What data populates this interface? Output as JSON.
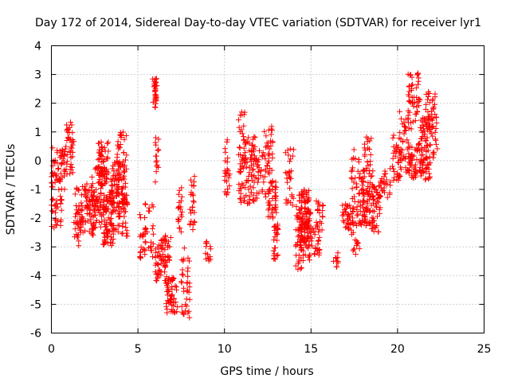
{
  "chart_data": {
    "type": "scatter",
    "title": "Day 172 of 2014, Sidereal Day-to-day VTEC variation (SDTVAR) for receiver lyr1",
    "xlabel": "GPS time / hours",
    "ylabel": "SDTVAR / TECUs",
    "xlim": [
      0,
      25
    ],
    "ylim": [
      -6,
      4
    ],
    "xticks": [
      0,
      5,
      10,
      15,
      20,
      25
    ],
    "yticks": [
      -6,
      -5,
      -4,
      -3,
      -2,
      -1,
      0,
      1,
      2,
      3,
      4
    ],
    "grid": true,
    "marker": "plus",
    "color": "#ff0000",
    "series": [
      {
        "name": "SDTVAR",
        "clusters": [
          {
            "x": [
              0.0,
              0.6
            ],
            "y": [
              -2.4,
              0.6
            ],
            "n": 60
          },
          {
            "x": [
              0.4,
              0.8
            ],
            "y": [
              -1.0,
              0.4
            ],
            "n": 30
          },
          {
            "x": [
              0.8,
              1.3
            ],
            "y": [
              -0.5,
              1.4
            ],
            "n": 40
          },
          {
            "x": [
              1.3,
              1.7
            ],
            "y": [
              -3.0,
              -0.9
            ],
            "n": 35
          },
          {
            "x": [
              1.7,
              2.5
            ],
            "y": [
              -2.6,
              -0.8
            ],
            "n": 70
          },
          {
            "x": [
              2.3,
              3.0
            ],
            "y": [
              -2.4,
              -0.2
            ],
            "n": 70
          },
          {
            "x": [
              2.7,
              3.3
            ],
            "y": [
              -1.0,
              0.7
            ],
            "n": 60
          },
          {
            "x": [
              3.0,
              3.6
            ],
            "y": [
              -3.0,
              -1.0
            ],
            "n": 80
          },
          {
            "x": [
              3.4,
              4.0
            ],
            "y": [
              -2.6,
              0.0
            ],
            "n": 70
          },
          {
            "x": [
              3.8,
              4.4
            ],
            "y": [
              -1.8,
              1.0
            ],
            "n": 70
          },
          {
            "x": [
              4.0,
              4.4
            ],
            "y": [
              -2.7,
              -1.3
            ],
            "n": 25
          },
          {
            "x": [
              5.1,
              5.9
            ],
            "y": [
              -3.4,
              -1.5
            ],
            "n": 45
          },
          {
            "x": [
              5.8,
              6.1
            ],
            "y": [
              1.8,
              2.9
            ],
            "n": 30
          },
          {
            "x": [
              6.0,
              6.2
            ],
            "y": [
              -0.8,
              0.9
            ],
            "n": 15
          },
          {
            "x": [
              6.0,
              6.6
            ],
            "y": [
              -4.2,
              -2.7
            ],
            "n": 55
          },
          {
            "x": [
              6.6,
              7.3
            ],
            "y": [
              -5.3,
              -4.0
            ],
            "n": 55
          },
          {
            "x": [
              6.5,
              6.9
            ],
            "y": [
              -3.7,
              -2.6
            ],
            "n": 20
          },
          {
            "x": [
              7.3,
              7.6
            ],
            "y": [
              -2.5,
              -0.9
            ],
            "n": 20
          },
          {
            "x": [
              7.5,
              8.0
            ],
            "y": [
              -5.5,
              -3.0
            ],
            "n": 35
          },
          {
            "x": [
              8.0,
              8.3
            ],
            "y": [
              -2.4,
              -0.5
            ],
            "n": 25
          },
          {
            "x": [
              8.9,
              9.2
            ],
            "y": [
              -3.5,
              -2.8
            ],
            "n": 15
          },
          {
            "x": [
              10.0,
              10.3
            ],
            "y": [
              -1.2,
              0.8
            ],
            "n": 25
          },
          {
            "x": [
              10.8,
              11.2
            ],
            "y": [
              -1.5,
              1.8
            ],
            "n": 50
          },
          {
            "x": [
              11.2,
              11.9
            ],
            "y": [
              -1.5,
              0.9
            ],
            "n": 70
          },
          {
            "x": [
              11.9,
              12.3
            ],
            "y": [
              -1.2,
              0.4
            ],
            "n": 20
          },
          {
            "x": [
              12.3,
              12.8
            ],
            "y": [
              -1.3,
              1.2
            ],
            "n": 45
          },
          {
            "x": [
              12.5,
              13.0
            ],
            "y": [
              -2.0,
              -0.7
            ],
            "n": 35
          },
          {
            "x": [
              12.8,
              13.1
            ],
            "y": [
              -3.5,
              -2.2
            ],
            "n": 25
          },
          {
            "x": [
              13.5,
              14.0
            ],
            "y": [
              -1.6,
              0.5
            ],
            "n": 30
          },
          {
            "x": [
              14.1,
              14.5
            ],
            "y": [
              -3.8,
              -1.5
            ],
            "n": 40
          },
          {
            "x": [
              14.3,
              14.9
            ],
            "y": [
              -3.0,
              -1.0
            ],
            "n": 80
          },
          {
            "x": [
              14.4,
              15.0
            ],
            "y": [
              -3.5,
              -1.8
            ],
            "n": 50
          },
          {
            "x": [
              15.0,
              15.5
            ],
            "y": [
              -3.3,
              -2.2
            ],
            "n": 25
          },
          {
            "x": [
              15.3,
              15.7
            ],
            "y": [
              -2.5,
              -1.3
            ],
            "n": 20
          },
          {
            "x": [
              16.3,
              16.6
            ],
            "y": [
              -3.7,
              -3.2
            ],
            "n": 10
          },
          {
            "x": [
              16.8,
              17.5
            ],
            "y": [
              -2.4,
              -1.5
            ],
            "n": 35
          },
          {
            "x": [
              17.3,
              17.8
            ],
            "y": [
              -3.3,
              0.4
            ],
            "n": 50
          },
          {
            "x": [
              17.8,
              18.3
            ],
            "y": [
              -2.3,
              -0.3
            ],
            "n": 45
          },
          {
            "x": [
              18.0,
              18.6
            ],
            "y": [
              -2.3,
              0.9
            ],
            "n": 60
          },
          {
            "x": [
              18.5,
              19.0
            ],
            "y": [
              -2.5,
              -0.8
            ],
            "n": 45
          },
          {
            "x": [
              19.0,
              19.6
            ],
            "y": [
              -1.3,
              -0.2
            ],
            "n": 25
          },
          {
            "x": [
              19.7,
              20.2
            ],
            "y": [
              -0.7,
              0.9
            ],
            "n": 30
          },
          {
            "x": [
              20.0,
              20.8
            ],
            "y": [
              -0.4,
              1.8
            ],
            "n": 50
          },
          {
            "x": [
              20.6,
              21.3
            ],
            "y": [
              1.3,
              3.1
            ],
            "n": 45
          },
          {
            "x": [
              20.6,
              21.2
            ],
            "y": [
              -0.6,
              0.5
            ],
            "n": 40
          },
          {
            "x": [
              21.2,
              21.9
            ],
            "y": [
              -0.7,
              1.5
            ],
            "n": 80
          },
          {
            "x": [
              21.6,
              22.3
            ],
            "y": [
              0.0,
              2.5
            ],
            "n": 60
          }
        ]
      }
    ]
  }
}
